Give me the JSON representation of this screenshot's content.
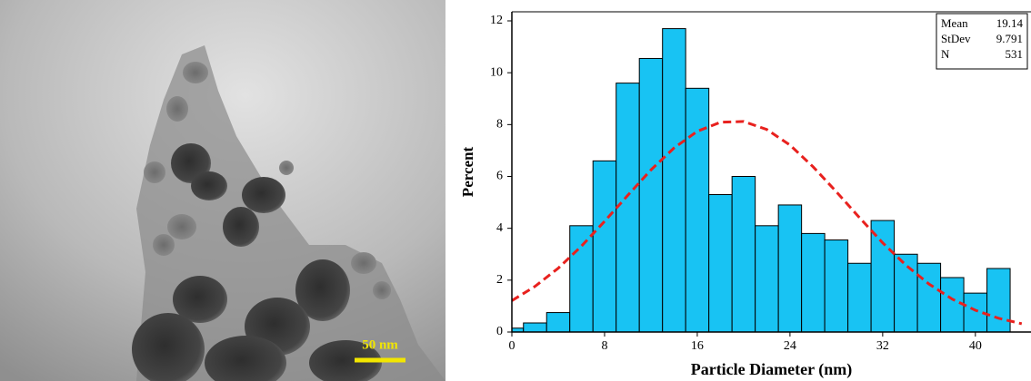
{
  "image": {
    "scale_bar_label": "50 nm"
  },
  "chart_data": {
    "type": "histogram",
    "xlabel": "Particle Diameter (nm)",
    "ylabel": "Percent",
    "bins": [
      -1,
      1,
      3,
      5,
      7,
      9,
      11,
      13,
      15,
      17,
      19,
      21,
      23,
      25,
      27,
      29,
      31,
      33,
      35,
      37,
      39,
      41,
      43
    ],
    "values": [
      0.15,
      0.35,
      0.75,
      4.1,
      6.6,
      9.6,
      10.55,
      11.7,
      9.4,
      5.3,
      6.0,
      4.1,
      4.9,
      3.8,
      3.55,
      2.65,
      4.3,
      3.0,
      2.65,
      2.1,
      1.5,
      2.45
    ],
    "color": "#18c3f3",
    "fit": {
      "color": "#e8211e",
      "x": [
        0,
        2,
        4,
        6,
        8,
        10,
        12,
        14,
        16,
        18,
        20,
        22,
        24,
        26,
        28,
        30,
        32,
        34,
        36,
        38,
        40,
        42,
        44
      ],
      "values": [
        1.21,
        1.76,
        2.46,
        3.31,
        4.27,
        5.27,
        6.25,
        7.1,
        7.74,
        8.09,
        8.12,
        7.81,
        7.21,
        6.37,
        5.41,
        4.41,
        3.44,
        2.58,
        1.85,
        1.27,
        0.84,
        0.53,
        0.32
      ]
    },
    "stats": [
      {
        "label": "Mean",
        "value": 19.14
      },
      {
        "label": "StDev",
        "value": 9.791
      },
      {
        "label": "N",
        "value": 531
      }
    ],
    "xlim": [
      0,
      44.8
    ],
    "ylim": [
      0,
      12.35
    ],
    "xticks": [
      0,
      8,
      16,
      24,
      32,
      40
    ],
    "yticks": [
      0,
      2,
      4,
      6,
      8,
      10,
      12
    ]
  }
}
